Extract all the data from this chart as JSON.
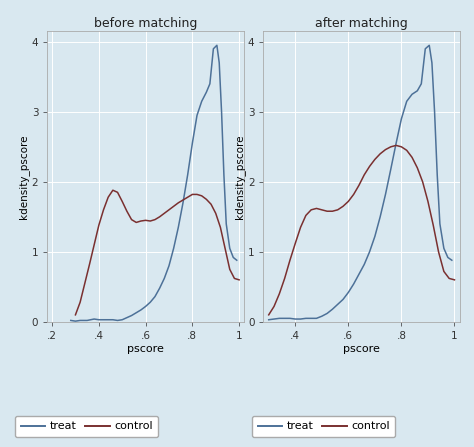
{
  "title_left": "before matching",
  "title_right": "after matching",
  "xlabel": "pscore",
  "ylabel": "kdensity_pscore",
  "background_color": "#d9e8f0",
  "plot_bg_color": "#d9e8f0",
  "treat_color": "#4d7198",
  "control_color": "#7a3030",
  "ylim": [
    0,
    4.15
  ],
  "left_xlim": [
    0.18,
    1.02
  ],
  "right_xlim": [
    0.28,
    1.02
  ],
  "left_xticks": [
    0.2,
    0.4,
    0.6,
    0.8,
    1.0
  ],
  "right_xticks": [
    0.4,
    0.6,
    0.8,
    1.0
  ],
  "left_xticklabels": [
    ".2",
    ".4",
    ".6",
    ".8",
    "1"
  ],
  "right_xticklabels": [
    ".4",
    ".6",
    ".8",
    "1"
  ],
  "yticks": [
    0,
    1,
    2,
    3,
    4
  ],
  "yticklabels": [
    "0",
    "1",
    "2",
    "3",
    "4"
  ],
  "treat_before_x": [
    0.28,
    0.3,
    0.32,
    0.35,
    0.38,
    0.4,
    0.42,
    0.44,
    0.46,
    0.48,
    0.5,
    0.52,
    0.54,
    0.56,
    0.58,
    0.6,
    0.62,
    0.64,
    0.66,
    0.68,
    0.7,
    0.72,
    0.74,
    0.76,
    0.78,
    0.8,
    0.82,
    0.84,
    0.86,
    0.875,
    0.89,
    0.905,
    0.915,
    0.925,
    0.935,
    0.945,
    0.96,
    0.975,
    0.99
  ],
  "treat_before_y": [
    0.02,
    0.01,
    0.02,
    0.02,
    0.04,
    0.03,
    0.03,
    0.03,
    0.03,
    0.02,
    0.03,
    0.06,
    0.09,
    0.13,
    0.17,
    0.22,
    0.28,
    0.36,
    0.48,
    0.62,
    0.8,
    1.05,
    1.35,
    1.7,
    2.1,
    2.55,
    2.95,
    3.15,
    3.28,
    3.4,
    3.9,
    3.95,
    3.7,
    3.0,
    2.1,
    1.4,
    1.05,
    0.92,
    0.88
  ],
  "control_before_x": [
    0.3,
    0.32,
    0.34,
    0.36,
    0.38,
    0.4,
    0.42,
    0.44,
    0.46,
    0.48,
    0.5,
    0.52,
    0.54,
    0.56,
    0.58,
    0.6,
    0.62,
    0.64,
    0.66,
    0.68,
    0.7,
    0.72,
    0.74,
    0.76,
    0.78,
    0.8,
    0.82,
    0.84,
    0.86,
    0.88,
    0.9,
    0.92,
    0.94,
    0.96,
    0.98,
    1.0
  ],
  "control_before_y": [
    0.1,
    0.28,
    0.55,
    0.82,
    1.1,
    1.38,
    1.6,
    1.78,
    1.88,
    1.85,
    1.72,
    1.58,
    1.46,
    1.42,
    1.44,
    1.45,
    1.44,
    1.46,
    1.5,
    1.55,
    1.6,
    1.65,
    1.7,
    1.74,
    1.78,
    1.82,
    1.82,
    1.8,
    1.75,
    1.68,
    1.55,
    1.35,
    1.05,
    0.75,
    0.62,
    0.6
  ],
  "treat_after_x": [
    0.3,
    0.32,
    0.34,
    0.36,
    0.38,
    0.4,
    0.42,
    0.44,
    0.46,
    0.48,
    0.5,
    0.52,
    0.54,
    0.56,
    0.58,
    0.6,
    0.62,
    0.64,
    0.66,
    0.68,
    0.7,
    0.72,
    0.74,
    0.76,
    0.78,
    0.8,
    0.82,
    0.84,
    0.86,
    0.875,
    0.89,
    0.905,
    0.915,
    0.925,
    0.935,
    0.945,
    0.96,
    0.975,
    0.99
  ],
  "treat_after_y": [
    0.03,
    0.04,
    0.05,
    0.05,
    0.05,
    0.04,
    0.04,
    0.05,
    0.05,
    0.05,
    0.08,
    0.12,
    0.18,
    0.25,
    0.32,
    0.42,
    0.54,
    0.68,
    0.82,
    1.0,
    1.22,
    1.5,
    1.82,
    2.18,
    2.55,
    2.9,
    3.15,
    3.25,
    3.3,
    3.4,
    3.9,
    3.95,
    3.7,
    3.0,
    2.1,
    1.4,
    1.05,
    0.92,
    0.88
  ],
  "control_after_x": [
    0.3,
    0.32,
    0.34,
    0.36,
    0.38,
    0.4,
    0.42,
    0.44,
    0.46,
    0.48,
    0.5,
    0.52,
    0.54,
    0.56,
    0.58,
    0.6,
    0.62,
    0.64,
    0.66,
    0.68,
    0.7,
    0.72,
    0.74,
    0.76,
    0.78,
    0.8,
    0.82,
    0.84,
    0.86,
    0.88,
    0.9,
    0.92,
    0.94,
    0.96,
    0.98,
    1.0
  ],
  "control_after_y": [
    0.1,
    0.22,
    0.4,
    0.62,
    0.88,
    1.12,
    1.35,
    1.52,
    1.6,
    1.62,
    1.6,
    1.58,
    1.58,
    1.6,
    1.65,
    1.72,
    1.82,
    1.95,
    2.1,
    2.22,
    2.32,
    2.4,
    2.46,
    2.5,
    2.52,
    2.5,
    2.45,
    2.35,
    2.2,
    2.0,
    1.72,
    1.38,
    1.0,
    0.72,
    0.62,
    0.6
  ]
}
